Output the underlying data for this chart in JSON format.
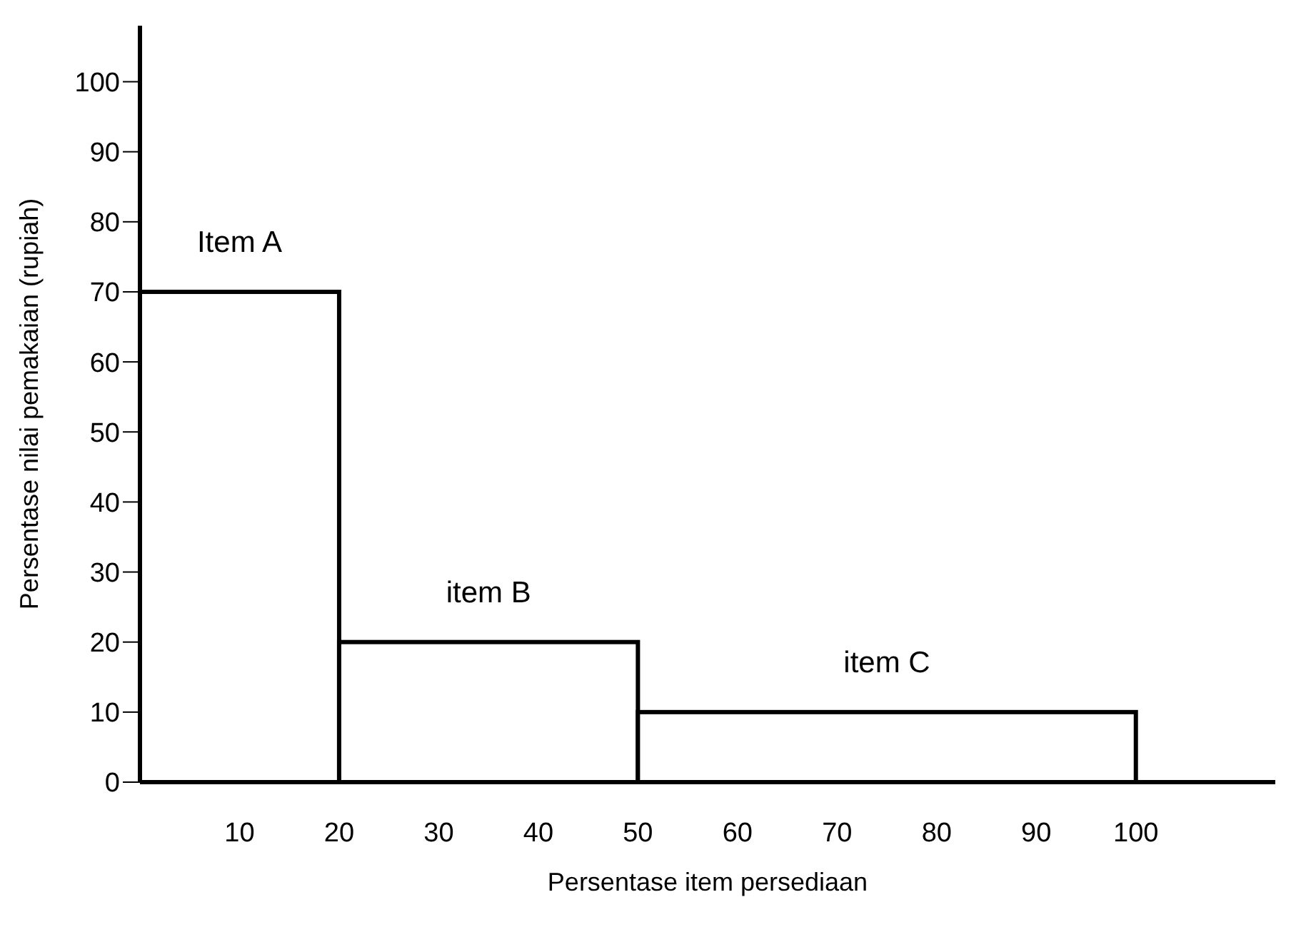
{
  "chart_data": {
    "type": "histogram",
    "xlabel": "Persentase item persediaan",
    "ylabel": "Persentase nilai pemakaian (rupiah)",
    "bins": [
      0,
      20,
      50,
      100
    ],
    "values": [
      70,
      20,
      10
    ],
    "color": "#000000",
    "xlim": [
      0,
      114
    ],
    "xticks": [
      10,
      20,
      30,
      40,
      50,
      60,
      70,
      80,
      90,
      100
    ],
    "ylim": [
      0,
      108
    ],
    "yticks": [
      0,
      10,
      20,
      30,
      40,
      50,
      60,
      70,
      80,
      90,
      100
    ],
    "grid": false,
    "annotations": [
      "Item A",
      "item B",
      "item C"
    ]
  }
}
